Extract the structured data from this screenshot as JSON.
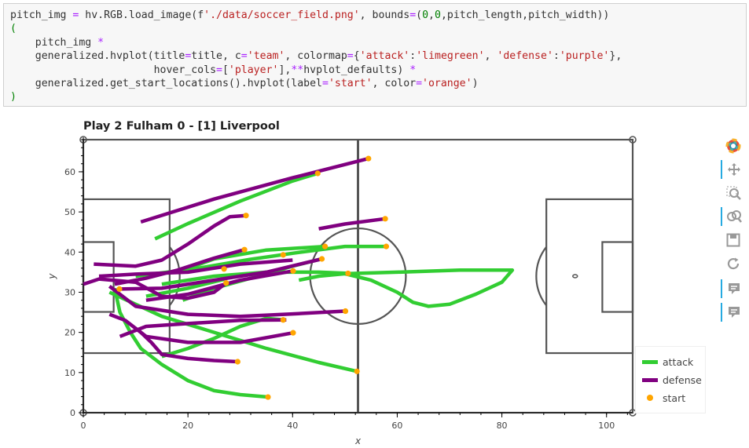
{
  "code": {
    "lines": [
      [
        [
          "n",
          "pitch_img "
        ],
        [
          "o",
          "="
        ],
        [
          "n",
          " hv.RGB.load_image(f"
        ],
        [
          "s",
          "'./data/soccer_field.png'"
        ],
        [
          "n",
          ", bounds"
        ],
        [
          "o",
          "="
        ],
        [
          "n",
          "("
        ],
        [
          "num",
          "0"
        ],
        [
          "n",
          ","
        ],
        [
          "num",
          "0"
        ],
        [
          "n",
          ",pitch_length,pitch_width))"
        ]
      ],
      [
        [
          "k",
          "("
        ]
      ],
      [
        [
          "n",
          "    pitch_img "
        ],
        [
          "o",
          "*"
        ]
      ],
      [
        [
          "n",
          "    generalized.hvplot(title"
        ],
        [
          "o",
          "="
        ],
        [
          "n",
          "title, c"
        ],
        [
          "o",
          "="
        ],
        [
          "s",
          "'team'"
        ],
        [
          "n",
          ", colormap"
        ],
        [
          "o",
          "="
        ],
        [
          "n",
          "{"
        ],
        [
          "s",
          "'attack'"
        ],
        [
          "n",
          ":"
        ],
        [
          "s",
          "'limegreen'"
        ],
        [
          "n",
          ", "
        ],
        [
          "s",
          "'defense'"
        ],
        [
          "n",
          ":"
        ],
        [
          "s",
          "'purple'"
        ],
        [
          "n",
          "},"
        ]
      ],
      [
        [
          "n",
          "                       hover_cols"
        ],
        [
          "o",
          "="
        ],
        [
          "n",
          "["
        ],
        [
          "s",
          "'player'"
        ],
        [
          "n",
          "],"
        ],
        [
          "o",
          "**"
        ],
        [
          "n",
          "hvplot_defaults) "
        ],
        [
          "o",
          "*"
        ]
      ],
      [
        [
          "n",
          "    generalized.get_start_locations().hvplot(label"
        ],
        [
          "o",
          "="
        ],
        [
          "s",
          "'start'"
        ],
        [
          "n",
          ", color"
        ],
        [
          "o",
          "="
        ],
        [
          "s",
          "'orange'"
        ],
        [
          "n",
          ")"
        ]
      ],
      [
        [
          "k",
          ")"
        ]
      ]
    ]
  },
  "plot": {
    "title": "Play 2 Fulham 0 - [1] Liverpool",
    "xlabel": "x",
    "ylabel": "y",
    "x_ticks": [
      "0",
      "20",
      "40",
      "60",
      "80",
      "100"
    ],
    "y_ticks": [
      "0",
      "10",
      "20",
      "30",
      "40",
      "50",
      "60"
    ]
  },
  "legend": {
    "attack": "attack",
    "defense": "defense",
    "start": "start"
  },
  "colors": {
    "attack": "#32cd32",
    "defense": "#800080",
    "start": "#ffa500",
    "pitch_lines": "#555555",
    "bokeh_active": "#26aae1"
  },
  "toolbar": {
    "tools": [
      "bokeh-logo-icon",
      "pan-icon",
      "box-zoom-icon",
      "wheel-zoom-icon",
      "save-icon",
      "reset-icon",
      "hover-icon",
      "hover-icon"
    ]
  },
  "chart_data": {
    "type": "line",
    "title": "Play 2 Fulham 0 - [1] Liverpool",
    "xlabel": "x",
    "ylabel": "y",
    "xlim": [
      0,
      105
    ],
    "ylim": [
      0,
      68
    ],
    "series": [
      {
        "name": "attack",
        "paths": [
          [
            [
              13.7,
              43.3
            ],
            [
              20,
              47.1
            ],
            [
              30,
              52.7
            ],
            [
              40,
              57.7
            ],
            [
              44.8,
              59.6
            ]
          ],
          [
            [
              52.3,
              10.3
            ],
            [
              45,
              12.5
            ],
            [
              35,
              16
            ],
            [
              25,
              20
            ],
            [
              15,
              24
            ],
            [
              10,
              27
            ],
            [
              5,
              30
            ]
          ],
          [
            [
              50.6,
              34.7
            ],
            [
              45,
              35
            ],
            [
              35,
              35
            ],
            [
              25,
              34
            ],
            [
              15,
              32
            ]
          ],
          [
            [
              45.2,
              38.2
            ],
            [
              40,
              36.5
            ],
            [
              32,
              33.5
            ],
            [
              25,
              31
            ],
            [
              19,
              28
            ]
          ],
          [
            [
              49.9,
              34.6
            ],
            [
              60,
              35
            ],
            [
              72,
              35.5
            ],
            [
              82,
              35.5
            ],
            [
              80,
              32.5
            ],
            [
              75,
              29.5
            ],
            [
              70,
              27
            ],
            [
              66,
              26.5
            ],
            [
              63,
              27.5
            ],
            [
              60,
              30
            ],
            [
              55,
              33
            ],
            [
              50,
              34.6
            ]
          ],
          [
            [
              57.9,
              41.4
            ],
            [
              50,
              41.4
            ],
            [
              40,
              39.7
            ],
            [
              32,
              38.2
            ],
            [
              22,
              36
            ],
            [
              10,
              34
            ]
          ],
          [
            [
              46.2,
              41.4
            ],
            [
              35,
              40.5
            ],
            [
              25,
              38.3
            ],
            [
              18,
              35
            ]
          ],
          [
            [
              38.2,
              23.1
            ],
            [
              35,
              23.5
            ],
            [
              30,
              21.5
            ],
            [
              25,
              18.5
            ],
            [
              20,
              16
            ],
            [
              15,
              14
            ]
          ],
          [
            [
              35.3,
              3.9
            ],
            [
              30,
              4.5
            ],
            [
              25,
              5.5
            ],
            [
              20,
              8
            ],
            [
              15,
              12
            ],
            [
              11,
              16
            ],
            [
              9,
              20
            ],
            [
              7,
              25
            ],
            [
              6,
              31
            ]
          ],
          [
            [
              41.2,
              33
            ],
            [
              45,
              34
            ],
            [
              50,
              34.6
            ]
          ],
          [
            [
              26.9,
              33.2
            ],
            [
              20,
              31
            ],
            [
              12,
              29
            ]
          ]
        ]
      },
      {
        "name": "defense",
        "paths": [
          [
            [
              54.5,
              63.3
            ],
            [
              40,
              58.5
            ],
            [
              25,
              53.2
            ],
            [
              11,
              47.5
            ]
          ],
          [
            [
              57.7,
              48.3
            ],
            [
              50,
              47
            ],
            [
              45,
              45.8
            ]
          ],
          [
            [
              31.1,
              49.1
            ],
            [
              28,
              48.8
            ],
            [
              25,
              46.5
            ],
            [
              20,
              42
            ],
            [
              15,
              38
            ],
            [
              10,
              36.5
            ],
            [
              2,
              37
            ]
          ],
          [
            [
              30.8,
              40.6
            ],
            [
              25,
              38.5
            ],
            [
              18,
              35.5
            ],
            [
              12,
              33.5
            ],
            [
              6,
              32
            ]
          ],
          [
            [
              45.6,
              38.3
            ],
            [
              35,
              35
            ],
            [
              25,
              33
            ],
            [
              15,
              31
            ],
            [
              7,
              30.8
            ]
          ],
          [
            [
              40.1,
              35.3
            ],
            [
              30,
              33
            ],
            [
              20,
              29.5
            ],
            [
              12,
              28
            ]
          ],
          [
            [
              27.3,
              32.3
            ],
            [
              25,
              30
            ],
            [
              20,
              28.5
            ],
            [
              15,
              29
            ],
            [
              10,
              32.5
            ],
            [
              3,
              33.3
            ],
            [
              0,
              32
            ]
          ],
          [
            [
              50.1,
              25.3
            ],
            [
              40,
              24.6
            ],
            [
              30,
              24
            ],
            [
              20,
              24.5
            ],
            [
              10,
              26.5
            ],
            [
              5,
              31.5
            ]
          ],
          [
            [
              40.1,
              19.9
            ],
            [
              30,
              17.5
            ],
            [
              20,
              17.5
            ],
            [
              12,
              19
            ],
            [
              8,
              23
            ],
            [
              5,
              24.5
            ]
          ],
          [
            [
              29.5,
              12.7
            ],
            [
              25,
              13
            ],
            [
              20,
              13.5
            ],
            [
              15,
              14.5
            ],
            [
              13,
              17.5
            ],
            [
              11,
              20
            ]
          ],
          [
            [
              38.8,
              23.1
            ],
            [
              30,
              23
            ],
            [
              20,
              22.2
            ],
            [
              12,
              21.5
            ],
            [
              7,
              19
            ]
          ],
          [
            [
              40,
              38
            ],
            [
              30,
              37
            ],
            [
              20,
              35
            ],
            [
              10,
              34.5
            ],
            [
              3,
              34
            ]
          ]
        ]
      },
      {
        "name": "start",
        "points": [
          [
            54.5,
            63.3
          ],
          [
            44.8,
            59.6
          ],
          [
            57.7,
            48.3
          ],
          [
            31.1,
            49.1
          ],
          [
            57.9,
            41.4
          ],
          [
            46.2,
            41.4
          ],
          [
            30.8,
            40.6
          ],
          [
            38.2,
            39.3
          ],
          [
            45.6,
            38.3
          ],
          [
            26.9,
            35.8
          ],
          [
            40.1,
            35.3
          ],
          [
            50.6,
            34.7
          ],
          [
            27.3,
            32.3
          ],
          [
            6.9,
            30.8
          ],
          [
            50.1,
            25.3
          ],
          [
            38.2,
            23.1
          ],
          [
            40.1,
            19.9
          ],
          [
            29.5,
            12.7
          ],
          [
            52.3,
            10.3
          ],
          [
            35.3,
            3.9
          ]
        ]
      }
    ]
  }
}
